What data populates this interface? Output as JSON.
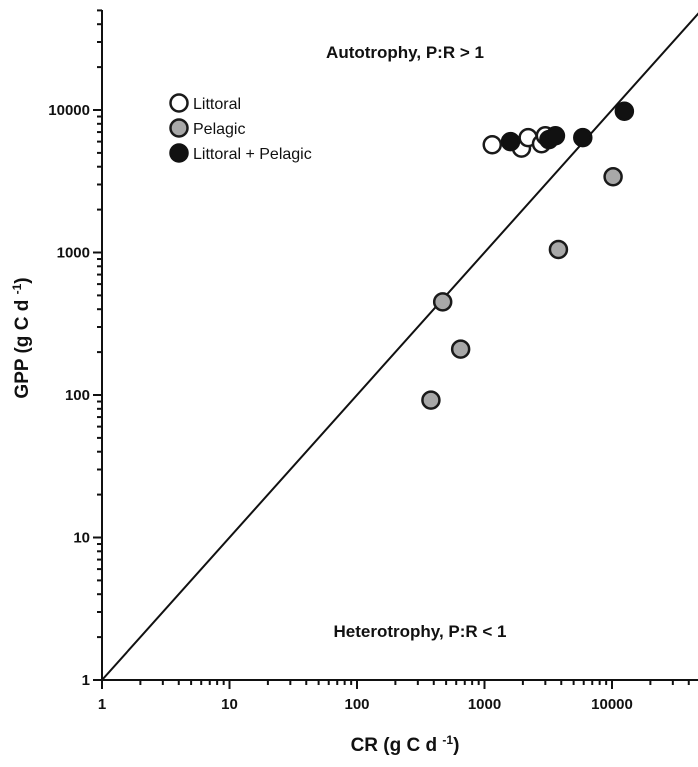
{
  "chart_data": {
    "type": "scatter",
    "x_scale": "log",
    "y_scale": "log",
    "xlim": [
      1,
      50000
    ],
    "ylim": [
      1,
      60000
    ],
    "xlabel": "CR (g C d-1)",
    "ylabel": "GPP (g C d-1)",
    "axis_units": {
      "base": "g C d",
      "superscript": "-1"
    },
    "x_ticks": [
      1,
      10,
      100,
      1000,
      10000
    ],
    "x_tick_labels": [
      "1",
      "10",
      "100",
      "1000",
      "10000"
    ],
    "y_ticks": [
      1,
      10,
      100,
      1000,
      10000
    ],
    "y_tick_labels": [
      "1",
      "10",
      "100",
      "1000",
      "10000"
    ],
    "grid": false,
    "legend_position": "top-left",
    "reference_line": {
      "type": "1:1",
      "x": [
        1,
        50000
      ],
      "y": [
        1,
        50000
      ]
    },
    "annotations": [
      {
        "text": "Autotrophy, P:R > 1",
        "position": "top"
      },
      {
        "text": "Heterotrophy, P:R < 1",
        "position": "bottom"
      }
    ],
    "series": [
      {
        "name": "Littoral",
        "fill": "#ffffff",
        "stroke": "#1a1a1a",
        "points": [
          [
            1150,
            5700
          ],
          [
            1950,
            5400
          ],
          [
            2200,
            6400
          ],
          [
            2800,
            5800
          ],
          [
            3000,
            6600
          ]
        ]
      },
      {
        "name": "Pelagic",
        "fill": "#a8a8a8",
        "stroke": "#1a1a1a",
        "points": [
          [
            380,
            92
          ],
          [
            470,
            450
          ],
          [
            650,
            210
          ],
          [
            3800,
            1050
          ],
          [
            10200,
            3400
          ]
        ]
      },
      {
        "name": "Littoral + Pelagic",
        "fill": "#111111",
        "stroke": "#111111",
        "points": [
          [
            1600,
            6000
          ],
          [
            3200,
            6200
          ],
          [
            3600,
            6600
          ],
          [
            5900,
            6400
          ],
          [
            12500,
            9800
          ]
        ]
      }
    ]
  }
}
